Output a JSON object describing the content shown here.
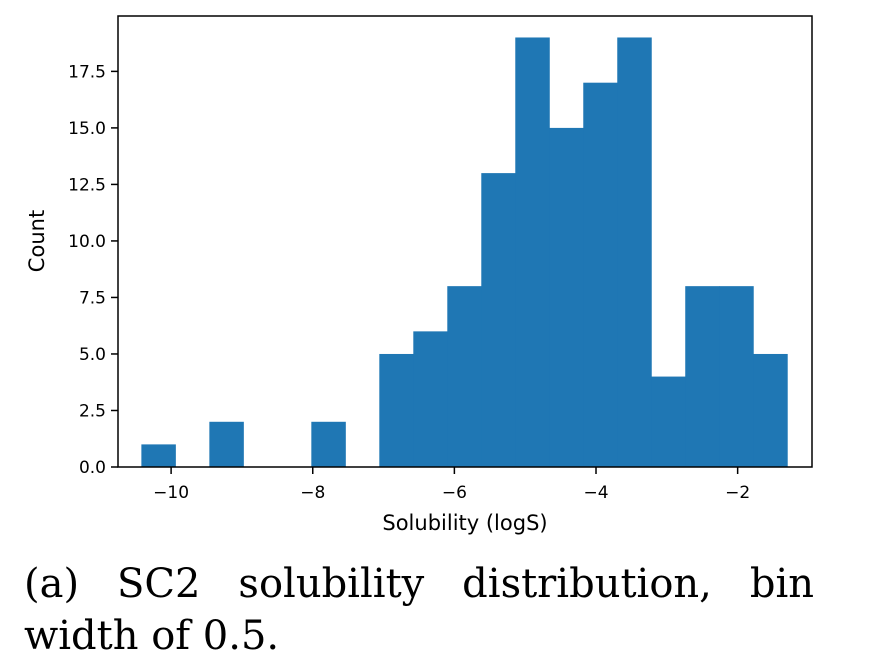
{
  "chart_data": {
    "type": "bar",
    "subtype": "histogram",
    "xlabel": "Solubility (logS)",
    "ylabel": "Count",
    "xlim": [
      -10.75,
      -0.95
    ],
    "ylim": [
      0,
      19.95
    ],
    "xticks": [
      -10,
      -8,
      -6,
      -4,
      -2
    ],
    "xtick_labels": [
      "−10",
      "−8",
      "−6",
      "−4",
      "−2"
    ],
    "yticks": [
      0,
      2.5,
      5,
      7.5,
      10,
      12.5,
      15,
      17.5
    ],
    "ytick_labels": [
      "0.0",
      "2.5",
      "5.0",
      "7.5",
      "10.0",
      "12.5",
      "15.0",
      "17.5"
    ],
    "bin_width": 0.48,
    "bin_start": -10.42,
    "values": [
      1,
      0,
      2,
      0,
      0,
      2,
      0,
      5,
      6,
      8,
      13,
      19,
      15,
      17,
      19,
      4,
      8,
      8,
      5
    ],
    "color": "#1f77b4",
    "grid": false,
    "legend": "none"
  },
  "caption": {
    "line1": "(a) SC2 solubility distribution, bin",
    "line2": "width of 0.5."
  }
}
